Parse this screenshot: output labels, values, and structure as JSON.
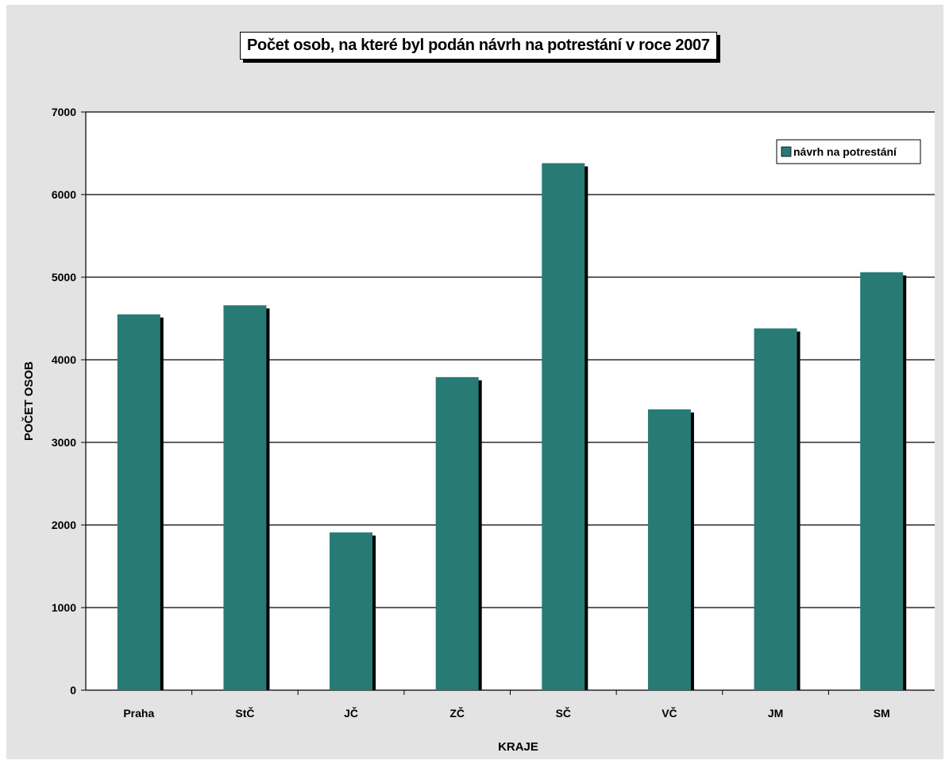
{
  "colors": {
    "bar": "#287a75",
    "shadow": "#000000",
    "plot_bg": "#ffffff",
    "chart_bg": "#e3e3e3"
  },
  "chart_data": {
    "type": "bar",
    "title": "Počet osob, na které byl podán návrh na potrestání v roce 2007",
    "xlabel": "KRAJE",
    "ylabel": "POČET OSOB",
    "categories": [
      "Praha",
      "StČ",
      "JČ",
      "ZČ",
      "SČ",
      "VČ",
      "JM",
      "SM"
    ],
    "series": [
      {
        "name": "návrh na potrestání",
        "values": [
          4550,
          4660,
          1910,
          3790,
          6380,
          3400,
          4380,
          5060
        ]
      }
    ],
    "ylim": [
      0,
      7000
    ],
    "yticks": [
      "0",
      "1000",
      "2000",
      "3000",
      "4000",
      "5000",
      "6000",
      "7000"
    ],
    "grid": true,
    "legend_position": "top-right"
  }
}
